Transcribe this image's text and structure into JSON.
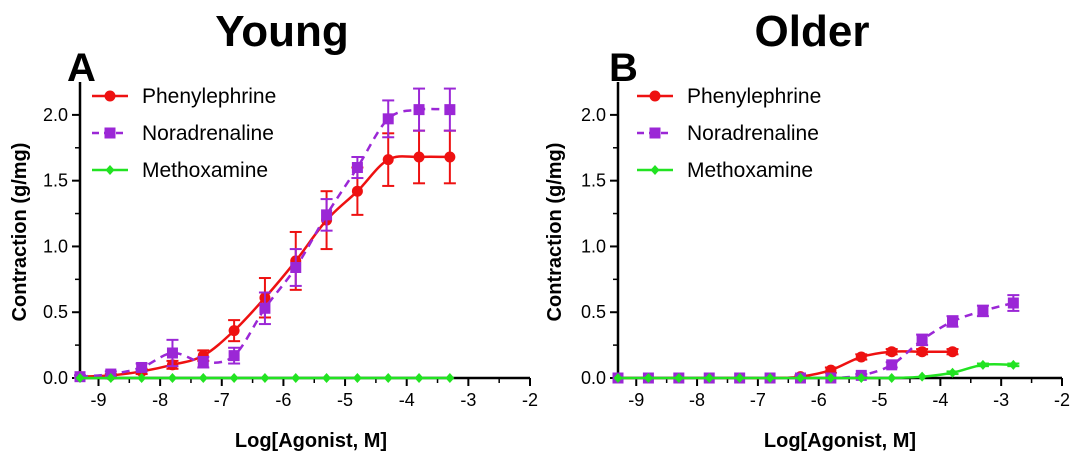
{
  "chart_data": [
    {
      "type": "line",
      "panel_letter": "A",
      "title": "Young",
      "xlabel": "Log[Agonist, M]",
      "ylabel": "Contraction (g/mg)",
      "xlim": [
        -9.3,
        -2
      ],
      "ylim": [
        0,
        2.25
      ],
      "xticks": [
        -9,
        -8,
        -7,
        -6,
        -5,
        -4,
        -3,
        -2
      ],
      "yticks": [
        0.0,
        0.5,
        1.0,
        1.5,
        2.0
      ],
      "legend_position": "top-left",
      "grid": false,
      "series": [
        {
          "name": "Phenylephrine",
          "marker": "circle",
          "line_style": "solid",
          "color": "#ee1111",
          "x": [
            -9.3,
            -8.8,
            -8.3,
            -7.8,
            -7.3,
            -6.8,
            -6.3,
            -5.8,
            -5.3,
            -4.8,
            -4.3,
            -3.8,
            -3.3
          ],
          "y": [
            0.01,
            0.02,
            0.05,
            0.1,
            0.17,
            0.36,
            0.61,
            0.89,
            1.2,
            1.42,
            1.66,
            1.68,
            1.68
          ],
          "err": [
            0.01,
            0.01,
            0.02,
            0.03,
            0.04,
            0.08,
            0.15,
            0.22,
            0.22,
            0.18,
            0.2,
            0.2,
            0.2
          ]
        },
        {
          "name": "Noradrenaline",
          "marker": "square",
          "line_style": "dashed",
          "color": "#9b27d6",
          "x": [
            -9.3,
            -8.8,
            -8.3,
            -7.8,
            -7.3,
            -6.8,
            -6.3,
            -5.8,
            -5.3,
            -4.8,
            -4.3,
            -3.8,
            -3.3
          ],
          "y": [
            0.01,
            0.03,
            0.08,
            0.19,
            0.12,
            0.17,
            0.53,
            0.84,
            1.24,
            1.6,
            1.97,
            2.04,
            2.04
          ],
          "err": [
            0.01,
            0.02,
            0.03,
            0.1,
            0.04,
            0.06,
            0.12,
            0.14,
            0.12,
            0.08,
            0.14,
            0.16,
            0.16
          ]
        },
        {
          "name": "Methoxamine",
          "marker": "diamond",
          "line_style": "solid",
          "color": "#22e322",
          "x": [
            -9.3,
            -8.8,
            -8.3,
            -7.8,
            -7.3,
            -6.8,
            -6.3,
            -5.8,
            -5.3,
            -4.8,
            -4.3,
            -3.8,
            -3.3
          ],
          "y": [
            0,
            0,
            0,
            0,
            0,
            0,
            0,
            0,
            0,
            0,
            0,
            0,
            0
          ],
          "err": [
            0,
            0,
            0,
            0,
            0,
            0,
            0,
            0,
            0,
            0,
            0,
            0,
            0
          ]
        }
      ]
    },
    {
      "type": "line",
      "panel_letter": "B",
      "title": "Older",
      "xlabel": "Log[Agonist, M]",
      "ylabel": "Contraction (g/mg)",
      "xlim": [
        -9.3,
        -2
      ],
      "ylim": [
        0,
        2.25
      ],
      "xticks": [
        -9,
        -8,
        -7,
        -6,
        -5,
        -4,
        -3,
        -2
      ],
      "yticks": [
        0.0,
        0.5,
        1.0,
        1.5,
        2.0
      ],
      "legend_position": "top-left",
      "grid": false,
      "series": [
        {
          "name": "Phenylephrine",
          "marker": "circle",
          "line_style": "solid",
          "color": "#ee1111",
          "x": [
            -9.3,
            -8.8,
            -8.3,
            -7.8,
            -7.3,
            -6.8,
            -6.3,
            -5.8,
            -5.3,
            -4.8,
            -4.3,
            -3.8
          ],
          "y": [
            0,
            0,
            0,
            0,
            0,
            0,
            0.01,
            0.06,
            0.16,
            0.2,
            0.2,
            0.2
          ],
          "err": [
            0,
            0,
            0,
            0,
            0,
            0,
            0.01,
            0.02,
            0.02,
            0.02,
            0.02,
            0.02
          ]
        },
        {
          "name": "Noradrenaline",
          "marker": "square",
          "line_style": "dashed",
          "color": "#9b27d6",
          "x": [
            -9.3,
            -8.8,
            -8.3,
            -7.8,
            -7.3,
            -6.8,
            -6.3,
            -5.8,
            -5.3,
            -4.8,
            -4.3,
            -3.8,
            -3.3,
            -2.8
          ],
          "y": [
            0,
            0,
            0,
            0,
            0,
            0,
            0,
            0,
            0.02,
            0.1,
            0.29,
            0.43,
            0.51,
            0.57
          ],
          "err": [
            0,
            0,
            0,
            0,
            0,
            0,
            0,
            0,
            0.01,
            0.02,
            0.04,
            0.04,
            0.04,
            0.06
          ]
        },
        {
          "name": "Methoxamine",
          "marker": "diamond",
          "line_style": "solid",
          "color": "#22e322",
          "x": [
            -9.3,
            -8.8,
            -8.3,
            -7.8,
            -7.3,
            -6.8,
            -6.3,
            -5.8,
            -5.3,
            -4.8,
            -4.3,
            -3.8,
            -3.3,
            -2.8
          ],
          "y": [
            0,
            0,
            0,
            0,
            0,
            0,
            0,
            0,
            0,
            0.0,
            0.01,
            0.04,
            0.1,
            0.1
          ],
          "err": [
            0,
            0,
            0,
            0,
            0,
            0,
            0,
            0,
            0,
            0,
            0,
            0.01,
            0.01,
            0.01
          ]
        }
      ]
    }
  ]
}
